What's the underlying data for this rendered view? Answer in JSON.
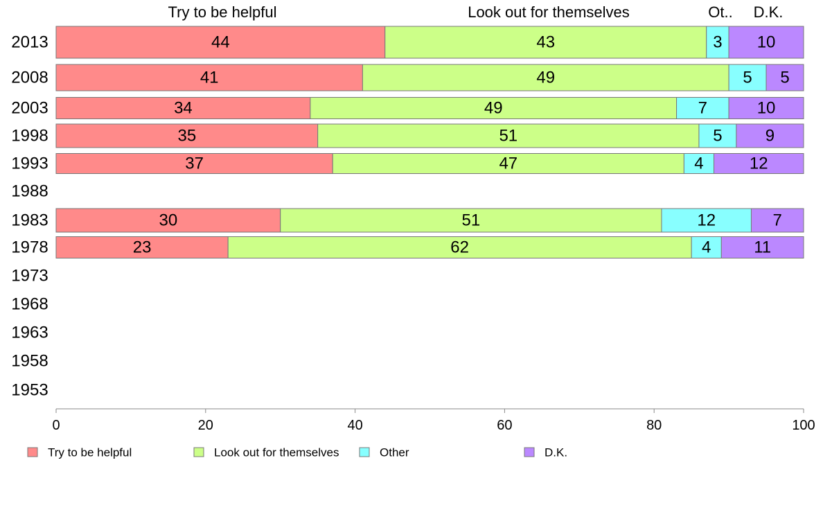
{
  "colors": {
    "Try to be helpful": "#ff8a8a",
    "Look out for themselves": "#ccff88",
    "Other": "#88ffff",
    "D.K.": "#bb88ff",
    "axis": "#888888"
  },
  "header_labels": [
    "Try to be helpful",
    "Look out for themselves",
    "Ot..",
    "D.K."
  ],
  "chart_data": {
    "type": "bar",
    "orientation": "horizontal",
    "stacked": true,
    "categories": [
      "2013",
      "2008",
      "2003",
      "1998",
      "1993",
      "1988",
      "1983",
      "1978",
      "1973",
      "1968",
      "1963",
      "1958",
      "1953"
    ],
    "series": [
      {
        "name": "Try to be helpful",
        "values": [
          44,
          41,
          34,
          35,
          37,
          null,
          30,
          23,
          null,
          null,
          null,
          null,
          null
        ]
      },
      {
        "name": "Look out for themselves",
        "values": [
          43,
          49,
          49,
          51,
          47,
          null,
          51,
          62,
          null,
          null,
          null,
          null,
          null
        ]
      },
      {
        "name": "Other",
        "values": [
          3,
          5,
          7,
          5,
          4,
          null,
          12,
          4,
          null,
          null,
          null,
          null,
          null
        ]
      },
      {
        "name": "D.K.",
        "values": [
          10,
          5,
          10,
          9,
          12,
          null,
          7,
          11,
          null,
          null,
          null,
          null,
          null
        ]
      }
    ],
    "xlim": [
      0,
      100
    ],
    "xticks": [
      0,
      20,
      40,
      60,
      80,
      100
    ],
    "grid": false,
    "legend": {
      "placement": "bottom-left",
      "entries": [
        "Try to be helpful",
        "Look out for themselves",
        "Other",
        "D.K."
      ]
    }
  }
}
